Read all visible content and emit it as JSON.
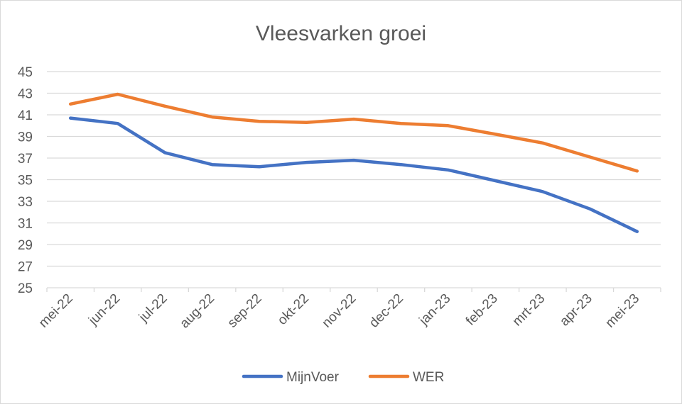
{
  "chart_data": {
    "type": "line",
    "title": "Vleesvarken groei",
    "categories": [
      "mei-22",
      "jun-22",
      "jul-22",
      "aug-22",
      "sep-22",
      "okt-22",
      "nov-22",
      "dec-22",
      "jan-23",
      "feb-23",
      "mrt-23",
      "apr-23",
      "mei-23"
    ],
    "series": [
      {
        "name": "MijnVoer",
        "color": "#4472C4",
        "values": [
          40.7,
          40.2,
          37.5,
          36.4,
          36.2,
          36.6,
          36.8,
          36.4,
          35.9,
          34.9,
          33.9,
          32.3,
          30.2
        ]
      },
      {
        "name": "WER",
        "color": "#ED7D31",
        "values": [
          42.0,
          42.9,
          41.8,
          40.8,
          40.4,
          40.3,
          40.6,
          40.2,
          40.0,
          39.2,
          38.4,
          37.1,
          35.8
        ]
      }
    ],
    "ylim": [
      25,
      45
    ],
    "yticks": [
      25,
      27,
      29,
      31,
      33,
      35,
      37,
      39,
      41,
      43,
      45
    ],
    "grid": true,
    "legend": "bottom"
  }
}
